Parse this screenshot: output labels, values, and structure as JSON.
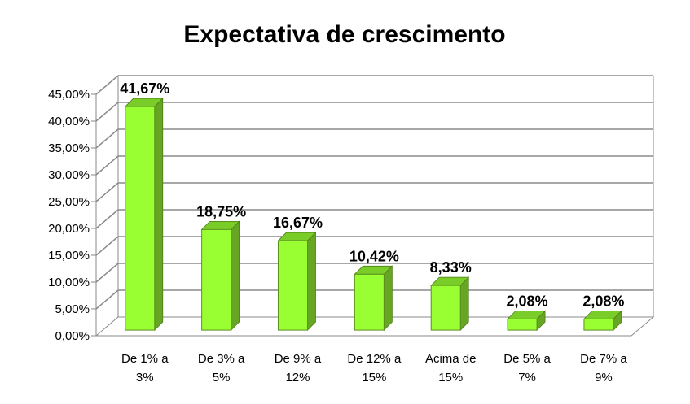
{
  "chart_data": {
    "type": "bar",
    "title": "Expectativa de crescimento",
    "categories": [
      [
        "De 1% a",
        "3%"
      ],
      [
        "De 3% a",
        "5%"
      ],
      [
        "De 9% a",
        "12%"
      ],
      [
        "De 12% a",
        "15%"
      ],
      [
        "Acima de",
        "15%"
      ],
      [
        "De 5% a",
        "7%"
      ],
      [
        "De 7% a",
        "9%"
      ]
    ],
    "values": [
      41.67,
      18.75,
      16.67,
      10.42,
      8.33,
      2.08,
      2.08
    ],
    "data_labels": [
      "41,67%",
      "18,75%",
      "16,67%",
      "10,42%",
      "8,33%",
      "2,08%",
      "2,08%"
    ],
    "y_ticks": [
      "0,00%",
      "5,00%",
      "10,00%",
      "15,00%",
      "20,00%",
      "25,00%",
      "30,00%",
      "35,00%",
      "40,00%",
      "45,00%"
    ],
    "ylim": [
      0,
      45
    ],
    "grid": true,
    "bar_color": "#99FF33",
    "bar_side_color": "#66A622",
    "bar_top_color": "#7ACC29"
  }
}
